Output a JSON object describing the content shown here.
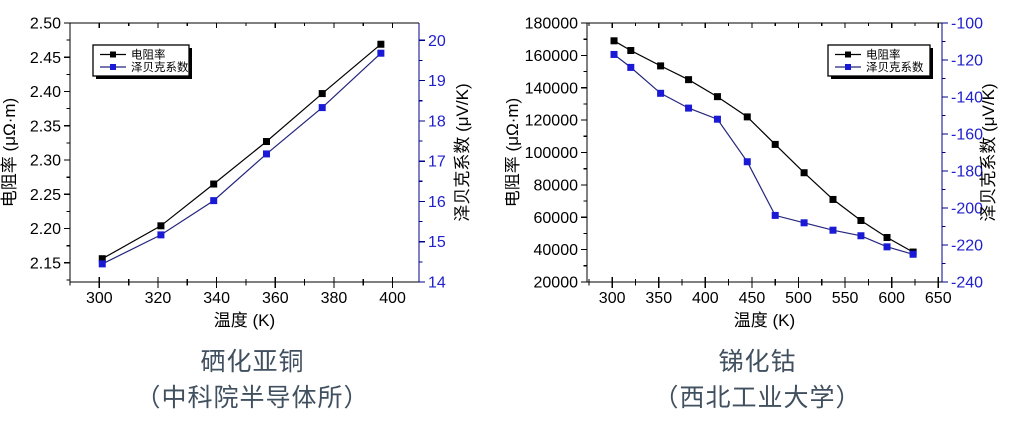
{
  "colors": {
    "frame": "#000000",
    "text": "#000000",
    "right_axis_spine": "#00008b",
    "right_axis_text": "#2020cc",
    "caption": "#41505f",
    "legend_border": "#000000",
    "legend_shadow": "#000000",
    "legend_background": "#ffffff"
  },
  "captions": [
    {
      "line1": "硒化亚铜",
      "line2": "（中科院半导体所）"
    },
    {
      "line1": "锑化钴",
      "line2": "（西北工业大学）"
    }
  ],
  "chart_data": [
    {
      "type": "line",
      "title": "",
      "material": "硒化亚铜",
      "xlabel": "温度 (K)",
      "ylabel_left": "电阻率 (μΩ·m)",
      "ylabel_right": "泽贝克系数 (μV/K)",
      "xlim": [
        290,
        409
      ],
      "xticks": [
        300,
        320,
        340,
        360,
        380,
        400
      ],
      "xtick_labels": [
        "300",
        "320",
        "340",
        "360",
        "380",
        "400"
      ],
      "x_minor_step": 10,
      "ylim_left": [
        2.122,
        2.5
      ],
      "yticks_left": [
        2.15,
        2.2,
        2.25,
        2.3,
        2.35,
        2.4,
        2.45,
        2.5
      ],
      "ytick_labels_left": [
        "2.15",
        "2.20",
        "2.25",
        "2.30",
        "2.35",
        "2.40",
        "2.45",
        "2.50"
      ],
      "y_minor_step_left": 0.025,
      "ylim_right": [
        14,
        20.43
      ],
      "yticks_right": [
        14,
        15,
        16,
        17,
        18,
        19,
        20
      ],
      "ytick_labels_right": [
        "14",
        "15",
        "16",
        "17",
        "18",
        "19",
        "20"
      ],
      "y_minor_step_right": 0.5,
      "grid": false,
      "legend": [
        "电阻率",
        "泽贝克系数"
      ],
      "legend_position": "top-left",
      "series": [
        {
          "name": "电阻率",
          "axis": "left",
          "line_color": "#000000",
          "marker_color": "#000000",
          "x": [
            301,
            321,
            339,
            357,
            376,
            396
          ],
          "y": [
            2.156,
            2.204,
            2.265,
            2.327,
            2.397,
            2.469
          ]
        },
        {
          "name": "泽贝克系数",
          "axis": "right",
          "line_color": "#25257d",
          "marker_color": "#1a1ad6",
          "x": [
            301,
            321,
            339,
            357,
            376,
            396
          ],
          "y": [
            14.45,
            15.17,
            16.02,
            17.18,
            18.33,
            19.68
          ]
        }
      ]
    },
    {
      "type": "line",
      "title": "",
      "material": "锑化钴",
      "xlabel": "温度 (K)",
      "ylabel_left": "电阻率 (μΩ·m)",
      "ylabel_right": "泽贝克系数 (μV/K)",
      "xlim": [
        273,
        654
      ],
      "xticks": [
        300,
        350,
        400,
        450,
        500,
        550,
        600,
        650
      ],
      "xtick_labels": [
        "300",
        "350",
        "400",
        "450",
        "500",
        "550",
        "600",
        "650"
      ],
      "x_minor_step": 25,
      "ylim_left": [
        20000,
        180000
      ],
      "yticks_left": [
        20000,
        40000,
        60000,
        80000,
        100000,
        120000,
        140000,
        160000,
        180000
      ],
      "ytick_labels_left": [
        "20000",
        "40000",
        "60000",
        "80000",
        "100000",
        "120000",
        "140000",
        "160000",
        "180000"
      ],
      "y_minor_step_left": 10000,
      "ylim_right": [
        -240,
        -100
      ],
      "yticks_right": [
        -240,
        -220,
        -200,
        -180,
        -160,
        -140,
        -120,
        -100
      ],
      "ytick_labels_right": [
        "-240",
        "-220",
        "-200",
        "-180",
        "-160",
        "-140",
        "-120",
        "-100"
      ],
      "y_minor_step_right": 10,
      "grid": false,
      "legend": [
        "电阻率",
        "泽贝克系数"
      ],
      "legend_position": "top-right",
      "series": [
        {
          "name": "电阻率",
          "axis": "left",
          "line_color": "#000000",
          "marker_color": "#000000",
          "x": [
            302,
            320,
            352,
            382,
            413,
            445,
            475,
            506,
            537,
            567,
            595,
            623
          ],
          "y": [
            169000,
            163000,
            153500,
            145000,
            134500,
            122000,
            105000,
            87500,
            71000,
            58000,
            47500,
            38500
          ]
        },
        {
          "name": "泽贝克系数",
          "axis": "right",
          "line_color": "#25257d",
          "marker_color": "#1a1ad6",
          "x": [
            302,
            320,
            352,
            382,
            413,
            445,
            475,
            506,
            537,
            567,
            595,
            623
          ],
          "y": [
            -117,
            -124,
            -138,
            -146,
            -152,
            -175,
            -204,
            -208,
            -212,
            -215,
            -221,
            -225
          ]
        }
      ]
    }
  ]
}
